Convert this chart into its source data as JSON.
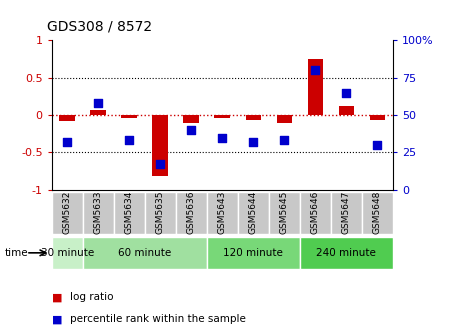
{
  "title": "GDS308 / 8572",
  "samples": [
    "GSM5632",
    "GSM5633",
    "GSM5634",
    "GSM5635",
    "GSM5636",
    "GSM5643",
    "GSM5644",
    "GSM5645",
    "GSM5646",
    "GSM5647",
    "GSM5648"
  ],
  "log_ratio": [
    -0.08,
    0.07,
    -0.04,
    -0.82,
    -0.1,
    -0.04,
    -0.07,
    -0.1,
    0.75,
    0.12,
    -0.06
  ],
  "percentile": [
    32,
    58,
    33,
    17,
    40,
    35,
    32,
    33,
    80,
    65,
    30
  ],
  "time_group_ranges": [
    [
      0,
      1
    ],
    [
      1,
      5
    ],
    [
      5,
      8
    ],
    [
      8,
      11
    ]
  ],
  "time_group_labels": [
    "30 minute",
    "60 minute",
    "120 minute",
    "240 minute"
  ],
  "time_group_colors": [
    "#c8f0c8",
    "#a0e0a0",
    "#78d878",
    "#50cc50"
  ],
  "bar_color": "#cc0000",
  "dot_color": "#0000cc",
  "ylim": [
    -1,
    1
  ],
  "y2lim": [
    0,
    100
  ],
  "yticks": [
    -1,
    -0.5,
    0,
    0.5,
    1
  ],
  "ytick_labels": [
    "-1",
    "-0.5",
    "0",
    "0.5",
    "1"
  ],
  "y2ticks": [
    0,
    25,
    50,
    75,
    100
  ],
  "y2tick_labels": [
    "0",
    "25",
    "50",
    "75",
    "100%"
  ],
  "bar_width": 0.5,
  "dot_size": 35,
  "hline_0_color": "#cc0000",
  "hline_05_color": "black",
  "sample_label_bg": "#c8c8c8",
  "legend_items": [
    {
      "color": "#cc0000",
      "label": "log ratio"
    },
    {
      "color": "#0000cc",
      "label": "percentile rank within the sample"
    }
  ]
}
